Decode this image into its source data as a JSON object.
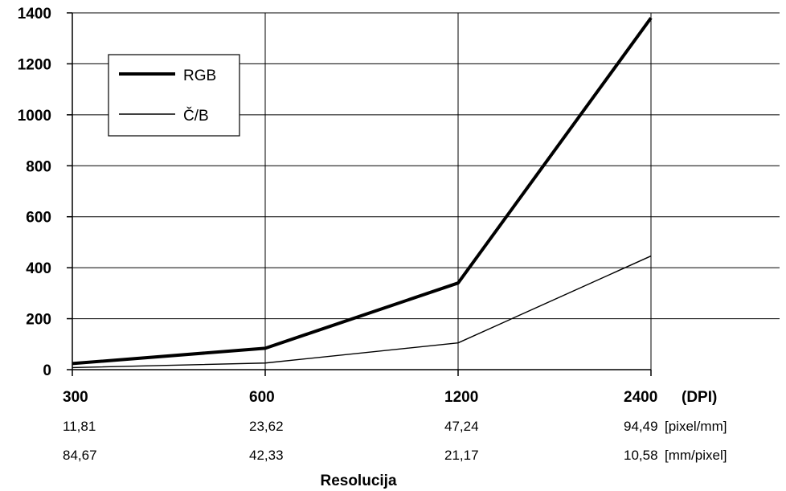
{
  "chart_data": {
    "type": "line",
    "x_categories": [
      "300",
      "600",
      "1200",
      "2400"
    ],
    "x_unit": "(DPI)",
    "x_rows": [
      {
        "values": [
          "11,81",
          "23,62",
          "47,24",
          "94,49"
        ],
        "unit": "[pixel/mm]"
      },
      {
        "values": [
          "84,67",
          "42,33",
          "21,17",
          "10,58"
        ],
        "unit": "[mm/pixel]"
      }
    ],
    "xlabel": "Resolucija",
    "ylabel": "",
    "title": "",
    "ylim": [
      0,
      1400
    ],
    "yticks": [
      0,
      200,
      400,
      600,
      800,
      1000,
      1200,
      1400
    ],
    "grid": true,
    "legend_position": "top-left",
    "series": [
      {
        "name": "RGB",
        "values": [
          24,
          84,
          340,
          1380
        ],
        "stroke": "thick"
      },
      {
        "name": "Č/B",
        "values": [
          8,
          26,
          105,
          446
        ],
        "stroke": "thin"
      }
    ]
  }
}
